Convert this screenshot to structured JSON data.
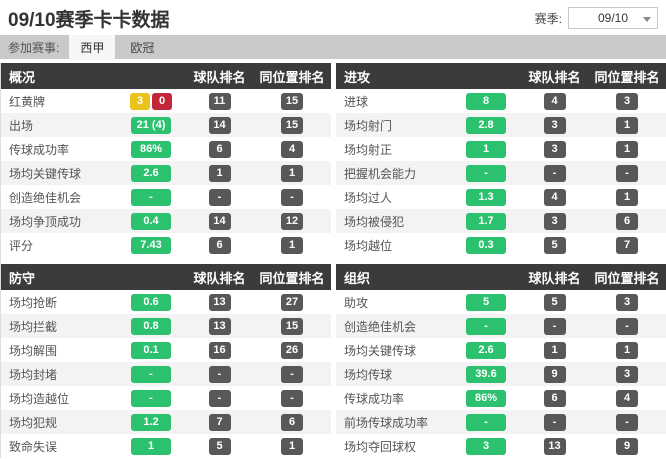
{
  "page": {
    "title": "09/10赛季卡卡数据",
    "season_label": "赛季:",
    "season_value": "09/10",
    "competition_label": "参加赛事:",
    "tabs": [
      {
        "label": "西甲",
        "active": true
      },
      {
        "label": "欧冠",
        "active": false
      }
    ]
  },
  "columns": {
    "team_rank": "球队排名",
    "position_rank": "同位置排名"
  },
  "colors": {
    "panel_header_bg": "#3b3b3b",
    "value_green": "#2cc16e",
    "rank_gray": "#58585a",
    "card_yellow": "#ecc21c",
    "card_red": "#c32638",
    "tabbar_gray": "#c9c9c9",
    "row_alt": "#f3f3f3"
  },
  "panels": [
    {
      "id": "overview",
      "title": "概况",
      "rows": [
        {
          "label": "红黄牌",
          "cards": {
            "yellow": "3",
            "red": "0"
          },
          "team": "11",
          "pos": "15"
        },
        {
          "label": "出场",
          "value": "21 (4)",
          "team": "14",
          "pos": "15"
        },
        {
          "label": "传球成功率",
          "value": "86%",
          "team": "6",
          "pos": "4"
        },
        {
          "label": "场均关键传球",
          "value": "2.6",
          "team": "1",
          "pos": "1"
        },
        {
          "label": "创造绝佳机会",
          "value": "-",
          "team": "-",
          "pos": "-"
        },
        {
          "label": "场均争顶成功",
          "value": "0.4",
          "team": "14",
          "pos": "12"
        },
        {
          "label": "评分",
          "value": "7.43",
          "team": "6",
          "pos": "1"
        }
      ]
    },
    {
      "id": "attack",
      "title": "进攻",
      "rows": [
        {
          "label": "进球",
          "value": "8",
          "team": "4",
          "pos": "3"
        },
        {
          "label": "场均射门",
          "value": "2.8",
          "team": "3",
          "pos": "1"
        },
        {
          "label": "场均射正",
          "value": "1",
          "team": "3",
          "pos": "1"
        },
        {
          "label": "把握机会能力",
          "value": "-",
          "team": "-",
          "pos": "-"
        },
        {
          "label": "场均过人",
          "value": "1.3",
          "team": "4",
          "pos": "1"
        },
        {
          "label": "场均被侵犯",
          "value": "1.7",
          "team": "3",
          "pos": "6"
        },
        {
          "label": "场均越位",
          "value": "0.3",
          "team": "5",
          "pos": "7"
        }
      ]
    },
    {
      "id": "defense",
      "title": "防守",
      "rows": [
        {
          "label": "场均抢断",
          "value": "0.6",
          "team": "13",
          "pos": "27"
        },
        {
          "label": "场均拦截",
          "value": "0.8",
          "team": "13",
          "pos": "15"
        },
        {
          "label": "场均解围",
          "value": "0.1",
          "team": "16",
          "pos": "26"
        },
        {
          "label": "场均封堵",
          "value": "-",
          "team": "-",
          "pos": "-"
        },
        {
          "label": "场均造越位",
          "value": "-",
          "team": "-",
          "pos": "-"
        },
        {
          "label": "场均犯规",
          "value": "1.2",
          "team": "7",
          "pos": "6"
        },
        {
          "label": "致命失误",
          "value": "1",
          "team": "5",
          "pos": "1"
        }
      ]
    },
    {
      "id": "organization",
      "title": "组织",
      "rows": [
        {
          "label": "助攻",
          "value": "5",
          "team": "5",
          "pos": "3"
        },
        {
          "label": "创造绝佳机会",
          "value": "-",
          "team": "-",
          "pos": "-"
        },
        {
          "label": "场均关键传球",
          "value": "2.6",
          "team": "1",
          "pos": "1"
        },
        {
          "label": "场均传球",
          "value": "39.6",
          "team": "9",
          "pos": "3"
        },
        {
          "label": "传球成功率",
          "value": "86%",
          "team": "6",
          "pos": "4"
        },
        {
          "label": "前场传球成功率",
          "value": "-",
          "team": "-",
          "pos": "-"
        },
        {
          "label": "场均夺回球权",
          "value": "3",
          "team": "13",
          "pos": "9"
        }
      ]
    }
  ]
}
